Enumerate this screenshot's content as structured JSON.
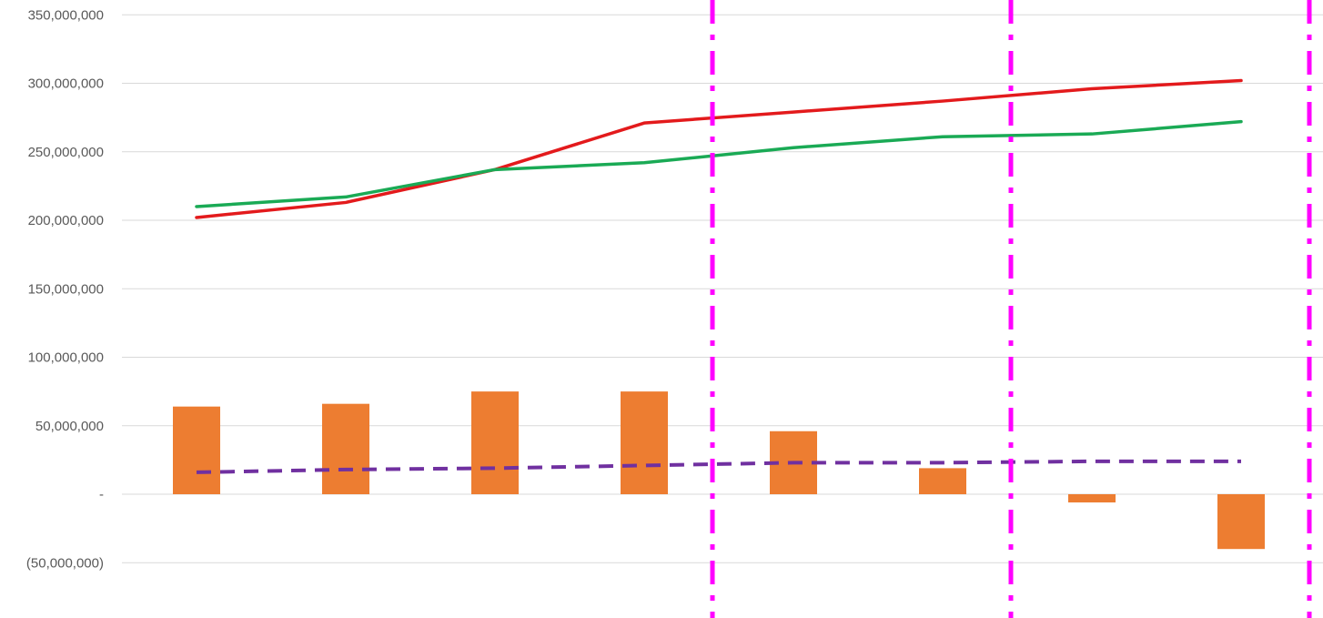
{
  "chart_data": {
    "type": "bar",
    "title": "",
    "xlabel": "",
    "ylabel": "",
    "ylim": [
      -90000000,
      350000000
    ],
    "grid": true,
    "legend": "none",
    "y_ticks": [
      {
        "value": 350000000,
        "label": "350,000,000"
      },
      {
        "value": 300000000,
        "label": "300,000,000"
      },
      {
        "value": 250000000,
        "label": "250,000,000"
      },
      {
        "value": 200000000,
        "label": "200,000,000"
      },
      {
        "value": 150000000,
        "label": "150,000,000"
      },
      {
        "value": 100000000,
        "label": "100,000,000"
      },
      {
        "value": 50000000,
        "label": "50,000,000"
      },
      {
        "value": 0,
        "label": "-"
      },
      {
        "value": -50000000,
        "label": "(50,000,000)"
      }
    ],
    "category_count": 8,
    "series": [
      {
        "type": "bar",
        "color": "#ED7D31",
        "values": [
          64000000,
          66000000,
          75000000,
          75000000,
          46000000,
          19000000,
          -6000000,
          -40000000
        ]
      },
      {
        "type": "line",
        "color": "#E31A1C",
        "values": [
          202000000,
          213000000,
          237000000,
          271000000,
          279000000,
          287000000,
          296000000,
          302000000
        ]
      },
      {
        "type": "line",
        "color": "#1AAA55",
        "values": [
          210000000,
          217000000,
          237000000,
          242000000,
          253000000,
          261000000,
          263000000,
          272000000
        ]
      },
      {
        "type": "line",
        "style": "dashed",
        "color": "#7030A0",
        "values": [
          16000000,
          18000000,
          19000000,
          21000000,
          23000000,
          23000000,
          24000000,
          24000000
        ]
      }
    ],
    "vertical_markers": {
      "color": "#FF00FF",
      "style": "dash-dot",
      "after_categories": [
        3.5,
        5.5,
        7.5
      ]
    }
  }
}
